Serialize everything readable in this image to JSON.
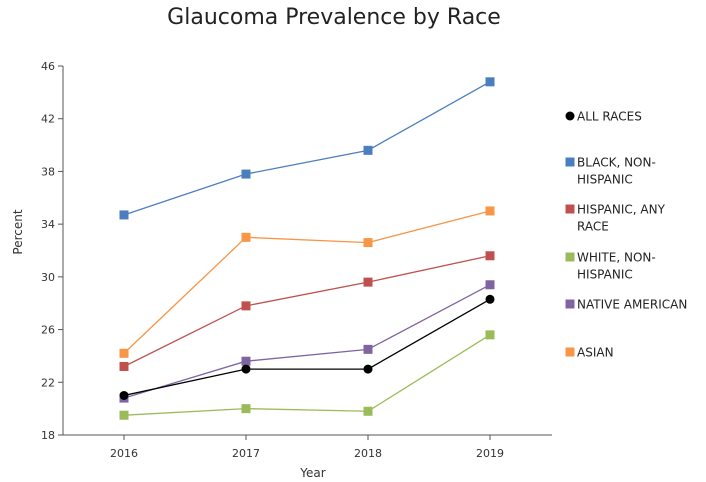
{
  "chart_data": {
    "type": "line",
    "title": "Glaucoma Prevalence by Race",
    "xlabel": "Year",
    "ylabel": "Percent",
    "categories": [
      "2016",
      "2017",
      "2018",
      "2019"
    ],
    "ylim": [
      18,
      46
    ],
    "yticks": [
      18,
      22,
      26,
      30,
      34,
      38,
      42,
      46
    ],
    "grid": false,
    "legend_position": "right",
    "series": [
      {
        "name": "ALL RACES",
        "legend_lines": [
          "ALL RACES"
        ],
        "color": "#000000",
        "marker": "circle",
        "values": [
          21.0,
          23.0,
          23.0,
          28.3
        ]
      },
      {
        "name": "BLACK, NON-HISPANIC",
        "legend_lines": [
          "BLACK, NON-",
          "HISPANIC"
        ],
        "color": "#4a7ebf",
        "marker": "square",
        "values": [
          34.7,
          37.8,
          39.6,
          44.8
        ]
      },
      {
        "name": "HISPANIC, ANY RACE",
        "legend_lines": [
          "HISPANIC, ANY",
          "RACE"
        ],
        "color": "#c0504d",
        "marker": "square",
        "values": [
          23.2,
          27.8,
          29.6,
          31.6
        ]
      },
      {
        "name": "WHITE, NON-HISPANIC",
        "legend_lines": [
          "WHITE, NON-",
          "HISPANIC"
        ],
        "color": "#9bbb59",
        "marker": "square",
        "values": [
          19.5,
          20.0,
          19.8,
          25.6
        ]
      },
      {
        "name": "NATIVE AMERICAN",
        "legend_lines": [
          "NATIVE AMERICAN"
        ],
        "color": "#8064a2",
        "marker": "square",
        "values": [
          20.8,
          23.6,
          24.5,
          29.4
        ]
      },
      {
        "name": "ASIAN",
        "legend_lines": [
          "ASIAN"
        ],
        "color": "#f79646",
        "marker": "square",
        "values": [
          24.2,
          33.0,
          32.6,
          35.0
        ]
      }
    ]
  }
}
